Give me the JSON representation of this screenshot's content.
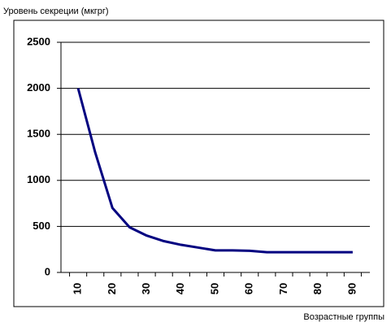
{
  "chart_data": {
    "type": "line",
    "title": "Уровень секреции (мкгрг)",
    "x_label": "Возрастные группы",
    "categories": [
      "10",
      null,
      "20",
      null,
      "30",
      null,
      "40",
      null,
      "50",
      null,
      "60",
      null,
      "70",
      null,
      "80",
      null,
      "90"
    ],
    "series": [
      {
        "name": "Уровень секреции",
        "color": "#000080",
        "values": [
          2000,
          1300,
          700,
          490,
          400,
          340,
          300,
          270,
          240,
          240,
          235,
          220,
          220,
          220,
          220,
          220,
          220
        ]
      }
    ],
    "ylim": [
      0,
      2500
    ],
    "yticks": [
      0,
      500,
      1000,
      1500,
      2000,
      2500
    ],
    "grid": true
  }
}
